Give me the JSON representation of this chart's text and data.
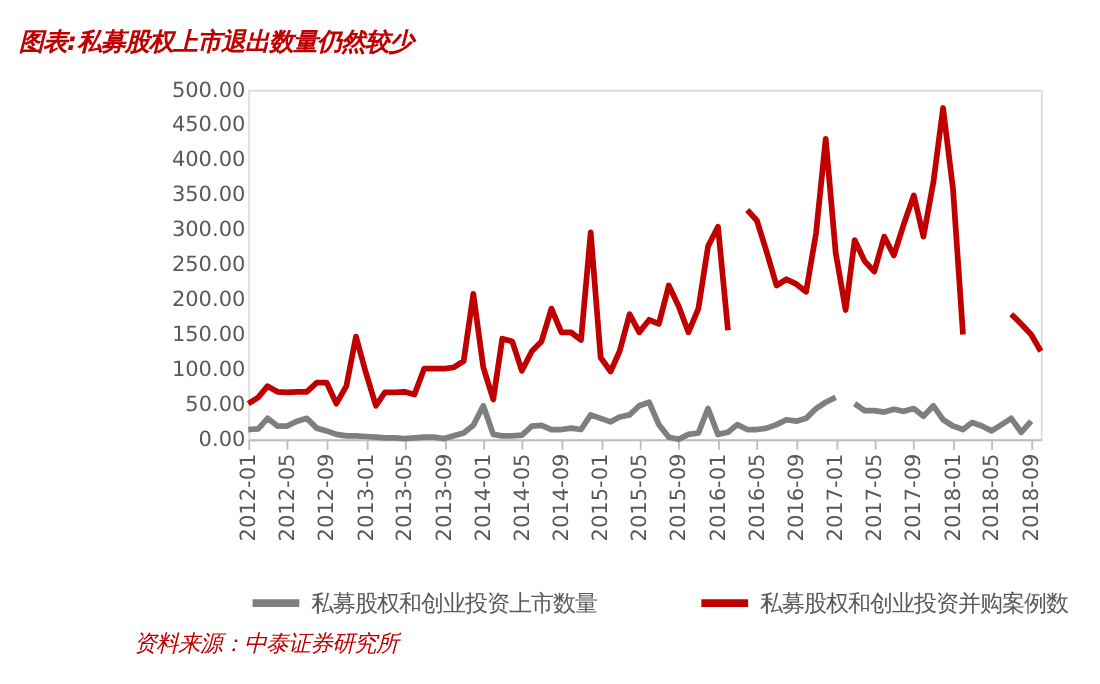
{
  "chart_data": {
    "type": "line",
    "title": "图表:私募股权上市退出数量仍然较少",
    "annotations": [
      "资料来源：中泰证券研究所"
    ],
    "x": [
      "2012-01",
      "2012-02",
      "2012-03",
      "2012-04",
      "2012-05",
      "2012-06",
      "2012-07",
      "2012-08",
      "2012-09",
      "2012-10",
      "2012-11",
      "2012-12",
      "2013-01",
      "2013-02",
      "2013-03",
      "2013-04",
      "2013-05",
      "2013-06",
      "2013-07",
      "2013-08",
      "2013-09",
      "2013-10",
      "2013-11",
      "2013-12",
      "2014-01",
      "2014-02",
      "2014-03",
      "2014-04",
      "2014-05",
      "2014-06",
      "2014-07",
      "2014-08",
      "2014-09",
      "2014-10",
      "2014-11",
      "2014-12",
      "2015-01",
      "2015-02",
      "2015-03",
      "2015-04",
      "2015-05",
      "2015-06",
      "2015-07",
      "2015-08",
      "2015-09",
      "2015-10",
      "2015-11",
      "2015-12",
      "2016-01",
      "2016-02",
      "2016-03",
      "2016-04",
      "2016-05",
      "2016-06",
      "2016-07",
      "2016-08",
      "2016-09",
      "2016-10",
      "2016-11",
      "2016-12",
      "2017-01",
      "2017-02",
      "2017-03",
      "2017-04",
      "2017-05",
      "2017-06",
      "2017-07",
      "2017-08",
      "2017-09",
      "2017-10",
      "2017-11",
      "2017-12",
      "2018-01",
      "2018-02",
      "2018-03",
      "2018-04",
      "2018-05",
      "2018-06",
      "2018-07",
      "2018-08",
      "2018-09",
      "2018-10"
    ],
    "series": [
      {
        "name": "私募股权和创业投资上市数量",
        "color": "#7f7f7f",
        "values": [
          14,
          15,
          30,
          19,
          19,
          26,
          30,
          16,
          12,
          7,
          5,
          5,
          4,
          3,
          2,
          2,
          1,
          2,
          3,
          3,
          1,
          5,
          9,
          20,
          48,
          7,
          5,
          5,
          6,
          19,
          20,
          14,
          14,
          16,
          14,
          35,
          30,
          25,
          32,
          35,
          48,
          53,
          21,
          3,
          0,
          7,
          9,
          44,
          7,
          10,
          21,
          14,
          14,
          16,
          21,
          28,
          26,
          30,
          44,
          53,
          60,
          null,
          51,
          41,
          41,
          39,
          43,
          40,
          44,
          33,
          48,
          28,
          19,
          14,
          24,
          19,
          12,
          21,
          30,
          10,
          26,
          null
        ]
      },
      {
        "name": "私募股权和创业投资并购案例数",
        "color": "#c00000",
        "values": [
          51,
          60,
          76,
          68,
          67,
          68,
          68,
          81,
          81,
          51,
          76,
          147,
          95,
          48,
          67,
          67,
          68,
          64,
          101,
          101,
          101,
          103,
          112,
          208,
          103,
          57,
          144,
          140,
          98,
          126,
          140,
          187,
          153,
          153,
          142,
          296,
          117,
          97,
          126,
          179,
          153,
          171,
          165,
          220,
          190,
          153,
          187,
          276,
          304,
          156,
          null,
          328,
          313,
          267,
          220,
          229,
          222,
          211,
          295,
          430,
          267,
          185,
          285,
          255,
          240,
          290,
          263,
          308,
          349,
          290,
          368,
          474,
          358,
          150,
          null,
          null,
          null,
          null,
          179,
          165,
          150,
          126
        ]
      }
    ],
    "xlim": [
      "2012-01",
      "2018-10"
    ],
    "xticks": [
      "2012-01",
      "2012-05",
      "2012-09",
      "2013-01",
      "2013-05",
      "2013-09",
      "2014-01",
      "2014-05",
      "2014-09",
      "2015-01",
      "2015-05",
      "2015-09",
      "2016-01",
      "2016-05",
      "2016-09",
      "2017-01",
      "2017-05",
      "2017-09",
      "2018-01",
      "2018-05",
      "2018-09"
    ],
    "ylim": [
      0,
      500
    ],
    "yticks": [
      {
        "value": 0,
        "label": "0.00"
      },
      {
        "value": 50,
        "label": "50.00"
      },
      {
        "value": 100,
        "label": "100.00"
      },
      {
        "value": 150,
        "label": "150.00"
      },
      {
        "value": 200,
        "label": "200.00"
      },
      {
        "value": 250,
        "label": "250.00"
      },
      {
        "value": 300,
        "label": "300.00"
      },
      {
        "value": 350,
        "label": "350.00"
      },
      {
        "value": 400,
        "label": "400.00"
      },
      {
        "value": 450,
        "label": "450.00"
      },
      {
        "value": 500,
        "label": "500.00"
      }
    ],
    "grid": false,
    "legend": "bottom",
    "marker": "none",
    "line_style": "solid"
  }
}
